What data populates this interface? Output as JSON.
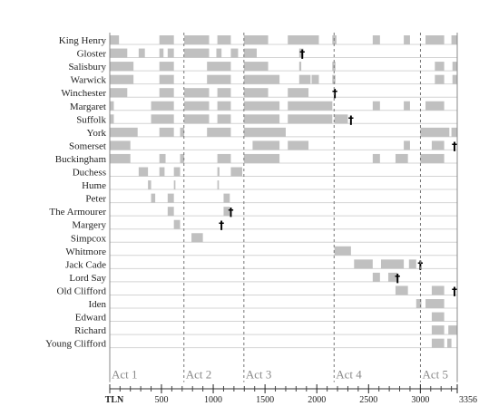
{
  "chart_data": {
    "type": "timeline",
    "xlabel": "TLN",
    "xlim": [
      1,
      3356
    ],
    "ticks": [
      500,
      1000,
      1500,
      2000,
      2500,
      3000,
      3356
    ],
    "act_breaks": [
      717,
      1296,
      2167,
      3001
    ],
    "acts": [
      {
        "label": "Act 1",
        "start": 1
      },
      {
        "label": "Act 2",
        "start": 717
      },
      {
        "label": "Act 3",
        "start": 1296
      },
      {
        "label": "Act 4",
        "start": 2167
      },
      {
        "label": "Act 5",
        "start": 3001
      }
    ],
    "bar_color": "#c0c0c0",
    "characters": [
      {
        "name": "King Henry",
        "segments": [
          [
            1,
            90
          ],
          [
            480,
            620
          ],
          [
            720,
            960
          ],
          [
            1040,
            1170
          ],
          [
            1296,
            1530
          ],
          [
            1720,
            2020
          ],
          [
            2150,
            2190
          ],
          [
            2540,
            2610
          ],
          [
            2840,
            2900
          ],
          [
            3050,
            3230
          ],
          [
            3300,
            3356
          ]
        ]
      },
      {
        "name": "Gloster",
        "segments": [
          [
            1,
            170
          ],
          [
            280,
            340
          ],
          [
            480,
            520
          ],
          [
            560,
            620
          ],
          [
            720,
            960
          ],
          [
            1030,
            1080
          ],
          [
            1170,
            1240
          ],
          [
            1296,
            1420
          ],
          [
            1830,
            1870
          ]
        ],
        "death": 1860
      },
      {
        "name": "Salisbury",
        "segments": [
          [
            1,
            230
          ],
          [
            480,
            620
          ],
          [
            940,
            1170
          ],
          [
            1296,
            1530
          ],
          [
            1830,
            1850
          ],
          [
            2150,
            2180
          ],
          [
            3140,
            3230
          ],
          [
            3310,
            3356
          ]
        ]
      },
      {
        "name": "Warwick",
        "segments": [
          [
            1,
            230
          ],
          [
            480,
            620
          ],
          [
            940,
            1170
          ],
          [
            1296,
            1640
          ],
          [
            1830,
            1940
          ],
          [
            1950,
            2020
          ],
          [
            2150,
            2180
          ],
          [
            3140,
            3230
          ],
          [
            3310,
            3356
          ]
        ]
      },
      {
        "name": "Winchester",
        "segments": [
          [
            1,
            170
          ],
          [
            480,
            620
          ],
          [
            720,
            960
          ],
          [
            1040,
            1170
          ],
          [
            1296,
            1530
          ],
          [
            1720,
            1920
          ]
        ],
        "death": 2175
      },
      {
        "name": "Margaret",
        "segments": [
          [
            1,
            40
          ],
          [
            400,
            620
          ],
          [
            720,
            960
          ],
          [
            1040,
            1170
          ],
          [
            1296,
            1640
          ],
          [
            1720,
            2150
          ],
          [
            2540,
            2610
          ],
          [
            2840,
            2900
          ],
          [
            3050,
            3230
          ]
        ]
      },
      {
        "name": "Suffolk",
        "segments": [
          [
            1,
            40
          ],
          [
            400,
            620
          ],
          [
            720,
            960
          ],
          [
            1040,
            1170
          ],
          [
            1296,
            1640
          ],
          [
            1720,
            2150
          ],
          [
            2170,
            2300
          ]
        ],
        "death": 2330
      },
      {
        "name": "York",
        "segments": [
          [
            1,
            270
          ],
          [
            480,
            620
          ],
          [
            680,
            720
          ],
          [
            940,
            1170
          ],
          [
            1296,
            1700
          ],
          [
            3000,
            3280
          ],
          [
            3300,
            3356
          ]
        ]
      },
      {
        "name": "Somerset",
        "segments": [
          [
            1,
            200
          ],
          [
            1380,
            1640
          ],
          [
            1720,
            1920
          ],
          [
            2840,
            2900
          ],
          [
            3110,
            3230
          ]
        ],
        "death": 3330
      },
      {
        "name": "Buckingham",
        "segments": [
          [
            1,
            200
          ],
          [
            480,
            540
          ],
          [
            680,
            720
          ],
          [
            1040,
            1170
          ],
          [
            1296,
            1640
          ],
          [
            2540,
            2610
          ],
          [
            2760,
            2880
          ],
          [
            3000,
            3230
          ]
        ]
      },
      {
        "name": "Duchess",
        "segments": [
          [
            280,
            370
          ],
          [
            480,
            530
          ],
          [
            620,
            680
          ],
          [
            1040,
            1060
          ],
          [
            1170,
            1280
          ]
        ]
      },
      {
        "name": "Hume",
        "segments": [
          [
            370,
            400
          ],
          [
            620,
            635
          ],
          [
            1040,
            1055
          ]
        ]
      },
      {
        "name": "Peter",
        "segments": [
          [
            400,
            440
          ],
          [
            560,
            620
          ],
          [
            1100,
            1160
          ]
        ]
      },
      {
        "name": "The Armourer",
        "segments": [
          [
            560,
            620
          ],
          [
            1100,
            1160
          ]
        ],
        "death": 1170
      },
      {
        "name": "Margery",
        "segments": [
          [
            620,
            680
          ]
        ],
        "death": 1080
      },
      {
        "name": "Simpcox",
        "segments": [
          [
            790,
            900
          ]
        ]
      },
      {
        "name": "Whitmore",
        "segments": [
          [
            2170,
            2330
          ]
        ]
      },
      {
        "name": "Jack Cade",
        "segments": [
          [
            2360,
            2540
          ],
          [
            2620,
            2840
          ],
          [
            2890,
            2960
          ]
        ],
        "death": 3000
      },
      {
        "name": "Lord Say",
        "segments": [
          [
            2540,
            2610
          ],
          [
            2690,
            2780
          ]
        ],
        "death": 2780
      },
      {
        "name": "Old Clifford",
        "segments": [
          [
            2760,
            2880
          ],
          [
            3110,
            3230
          ]
        ],
        "death": 3330
      },
      {
        "name": "Iden",
        "segments": [
          [
            2960,
            3010
          ],
          [
            3050,
            3230
          ]
        ]
      },
      {
        "name": "Edward",
        "segments": [
          [
            3110,
            3230
          ]
        ]
      },
      {
        "name": "Richard",
        "segments": [
          [
            3110,
            3230
          ],
          [
            3270,
            3356
          ]
        ]
      },
      {
        "name": "Young Clifford",
        "segments": [
          [
            3110,
            3230
          ],
          [
            3260,
            3300
          ]
        ]
      }
    ]
  }
}
